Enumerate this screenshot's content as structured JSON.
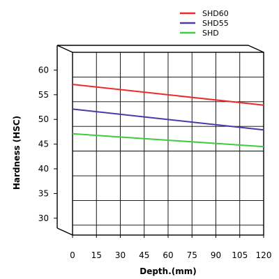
{
  "chart_data": {
    "type": "line",
    "xlabel": "Depth.(mm)",
    "ylabel": "Hardness (HSC)",
    "x_ticks": [
      0,
      15,
      30,
      45,
      60,
      75,
      90,
      105,
      120
    ],
    "y_ticks": [
      30,
      35,
      40,
      45,
      50,
      55,
      60
    ],
    "xlim": [
      0,
      120
    ],
    "ylim": [
      28,
      65
    ],
    "grid": true,
    "legend_position": "top-right",
    "style": "3d-box",
    "series": [
      {
        "name": "SHD60",
        "color": "#ee2a2a",
        "x": [
          0,
          120
        ],
        "y": [
          58.5,
          54.3
        ]
      },
      {
        "name": "SHD55",
        "color": "#4a3aa8",
        "x": [
          0,
          120
        ],
        "y": [
          53.5,
          49.3
        ]
      },
      {
        "name": "SHD",
        "color": "#3ccc3c",
        "x": [
          0,
          120
        ],
        "y": [
          48.5,
          45.9
        ]
      }
    ]
  }
}
